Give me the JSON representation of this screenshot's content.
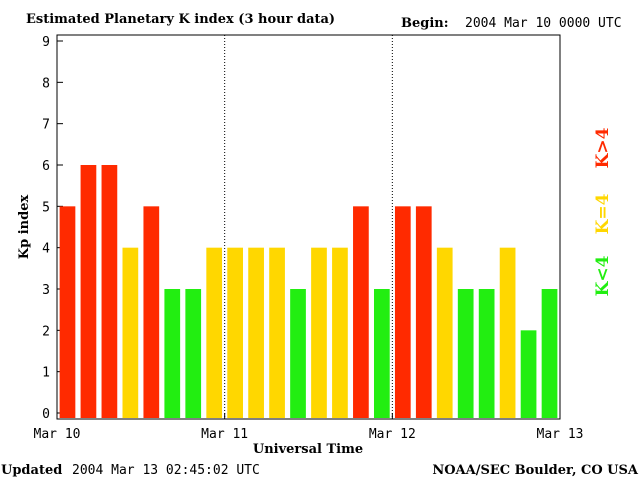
{
  "header": {
    "title": "Estimated Planetary K index (3 hour data)",
    "begin_label": "Begin:",
    "begin_value": "2004 Mar 10 0000 UTC"
  },
  "footer": {
    "updated_label": "Updated",
    "updated_value": "2004 Mar 13 02:45:02 UTC",
    "source": "NOAA/SEC Boulder, CO USA"
  },
  "legend": {
    "high": {
      "text": "K>4",
      "color": "#ff2a00"
    },
    "mid": {
      "text": "K=4",
      "color": "#ffd700"
    },
    "low": {
      "text": "K<4",
      "color": "#22ee11"
    }
  },
  "colors": {
    "high": "#ff2a00",
    "mid": "#ffd700",
    "low": "#22ee11",
    "axis": "#000000"
  },
  "chart_data": {
    "type": "bar",
    "title": "Estimated Planetary K index (3 hour data)",
    "xlabel": "Universal Time",
    "ylabel": "Kp index",
    "ylim": [
      0,
      9
    ],
    "yticks": [
      "0",
      "1",
      "2",
      "3",
      "4",
      "5",
      "6",
      "7",
      "8",
      "9"
    ],
    "xticks": [
      "Mar 10",
      "Mar 11",
      "Mar 12",
      "Mar 13"
    ],
    "values": [
      5,
      6,
      6,
      4,
      5,
      3,
      3,
      4,
      4,
      4,
      4,
      3,
      4,
      4,
      5,
      3,
      5,
      5,
      4,
      3,
      3,
      4,
      2,
      3
    ],
    "day_separators": [
      "Mar 11",
      "Mar 12"
    ],
    "color_rule": "K>4 red, K=4 yellow, K<4 green"
  }
}
